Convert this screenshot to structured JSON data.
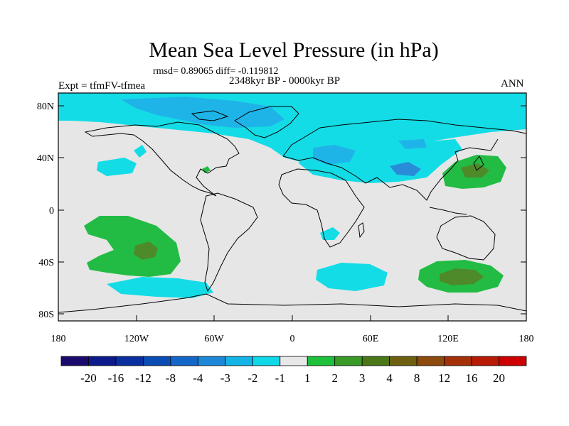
{
  "title": "Mean Sea Level Pressure (in hPa)",
  "stats": "rmsd= 0.89065 diff= -0.119812",
  "period": "2348kyr BP - 0000kyr BP",
  "experiment": "Expt = tfmFV-tfmea",
  "season": "ANN",
  "axes": {
    "x_ticks": [
      "180",
      "120W",
      "60W",
      "0",
      "60E",
      "120E",
      "180"
    ],
    "y_ticks": [
      "80N",
      "40N",
      "0",
      "40S",
      "80S"
    ]
  },
  "colorbar": {
    "labels": [
      "-20",
      "-16",
      "-12",
      "-8",
      "-4",
      "-3",
      "-2",
      "-1",
      "1",
      "2",
      "3",
      "4",
      "8",
      "12",
      "16",
      "20"
    ],
    "colors": [
      "#1a0a6e",
      "#0d1a8c",
      "#0a2fa0",
      "#0a4cb4",
      "#1466c8",
      "#1e88d8",
      "#14b4e6",
      "#0fd8e8",
      "#e8e8e8",
      "#1ec03c",
      "#3a9a28",
      "#4a7818",
      "#6e6010",
      "#8c4a0c",
      "#a43008",
      "#b81a06",
      "#cc0000"
    ]
  },
  "palette": {
    "background": "#e6e6e6",
    "land_line": "#000000",
    "neg_light": "#14dce6",
    "neg_mid": "#1fb4e8",
    "neg_dark": "#2a8cd8",
    "pos_light": "#22bc44",
    "pos_dark": "#4e8a2a"
  }
}
